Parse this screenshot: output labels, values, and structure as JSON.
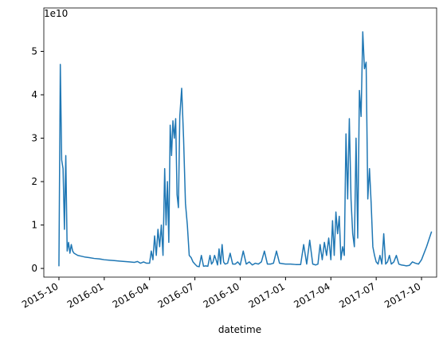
{
  "chart_data": {
    "type": "line",
    "offset_label": "1e10",
    "x_label": "datetime",
    "x": [
      "2015-10",
      "2015-10",
      "2015-10",
      "2015-10",
      "2015-10",
      "2015-10",
      "2015-10",
      "2015-10",
      "2015-10",
      "2015-10",
      "2015-10",
      "2015-11",
      "2015-11",
      "2015-11",
      "2015-11",
      "2015-12",
      "2015-12",
      "2015-12",
      "2016-01",
      "2016-01",
      "2016-01",
      "2016-02",
      "2016-02",
      "2016-02",
      "2016-03",
      "2016-03",
      "2016-03",
      "2016-03",
      "2016-03",
      "2016-04",
      "2016-04",
      "2016-04",
      "2016-04",
      "2016-04",
      "2016-04",
      "2016-04",
      "2016-04",
      "2016-04",
      "2016-05",
      "2016-05",
      "2016-05",
      "2016-05",
      "2016-05",
      "2016-05",
      "2016-05",
      "2016-05",
      "2016-05",
      "2016-05",
      "2016-05",
      "2016-06",
      "2016-06",
      "2016-06",
      "2016-06",
      "2016-06",
      "2016-06",
      "2016-06",
      "2016-06",
      "2016-07",
      "2016-07",
      "2016-07",
      "2016-07",
      "2016-07",
      "2016-07",
      "2016-07",
      "2016-08",
      "2016-08",
      "2016-08",
      "2016-08",
      "2016-08",
      "2016-08",
      "2016-08",
      "2016-08",
      "2016-08",
      "2016-08",
      "2016-09",
      "2016-09",
      "2016-09",
      "2016-09",
      "2016-09",
      "2016-09",
      "2016-10",
      "2016-10",
      "2016-10",
      "2016-10",
      "2016-10",
      "2016-11",
      "2016-11",
      "2016-11",
      "2016-11",
      "2016-11",
      "2016-12",
      "2016-12",
      "2016-12",
      "2016-12",
      "2016-12",
      "2017-01",
      "2017-01",
      "2017-01",
      "2017-02",
      "2017-02",
      "2017-02",
      "2017-02",
      "2017-02",
      "2017-03",
      "2017-03",
      "2017-03",
      "2017-03",
      "2017-03",
      "2017-03",
      "2017-03",
      "2017-04",
      "2017-04",
      "2017-04",
      "2017-04",
      "2017-04",
      "2017-04",
      "2017-04",
      "2017-04",
      "2017-04",
      "2017-05",
      "2017-05",
      "2017-05",
      "2017-05",
      "2017-05",
      "2017-05",
      "2017-05",
      "2017-05",
      "2017-05",
      "2017-06",
      "2017-06",
      "2017-06",
      "2017-06",
      "2017-06",
      "2017-06",
      "2017-06",
      "2017-06",
      "2017-06",
      "2017-07",
      "2017-07",
      "2017-07",
      "2017-07",
      "2017-07",
      "2017-07",
      "2017-07",
      "2017-07",
      "2017-08",
      "2017-08",
      "2017-08",
      "2017-08",
      "2017-08",
      "2017-08",
      "2017-09",
      "2017-09",
      "2017-09",
      "2017-09",
      "2017-09",
      "2017-10",
      "2017-10",
      "2017-10"
    ],
    "series": [
      {
        "color": "#1f77b4",
        "values": [
          0.05,
          4.7,
          2.5,
          2.3,
          0.9,
          2.6,
          0.4,
          0.6,
          0.35,
          0.55,
          0.4,
          0.35,
          0.3,
          0.28,
          0.26,
          0.25,
          0.23,
          0.22,
          0.2,
          0.19,
          0.18,
          0.17,
          0.16,
          0.15,
          0.14,
          0.16,
          0.12,
          0.15,
          0.12,
          0.12,
          0.4,
          0.2,
          0.75,
          0.3,
          0.9,
          0.5,
          1.0,
          0.3,
          2.3,
          1.0,
          2.0,
          0.6,
          3.3,
          2.6,
          3.4,
          3.0,
          3.45,
          1.7,
          1.4,
          3.5,
          4.15,
          3.0,
          1.5,
          1.0,
          0.3,
          0.25,
          0.15,
          0.1,
          0.05,
          0.04,
          0.3,
          0.05,
          0.06,
          0.05,
          0.3,
          0.1,
          0.15,
          0.3,
          0.2,
          0.08,
          0.45,
          0.1,
          0.55,
          0.15,
          0.1,
          0.12,
          0.35,
          0.1,
          0.1,
          0.15,
          0.08,
          0.4,
          0.1,
          0.15,
          0.08,
          0.12,
          0.1,
          0.15,
          0.4,
          0.1,
          0.1,
          0.12,
          0.4,
          0.12,
          0.11,
          0.1,
          0.1,
          0.09,
          0.09,
          0.55,
          0.1,
          0.65,
          0.1,
          0.08,
          0.1,
          0.55,
          0.2,
          0.6,
          0.3,
          0.7,
          0.2,
          1.1,
          0.3,
          1.3,
          0.8,
          1.2,
          0.2,
          0.5,
          0.3,
          3.1,
          1.6,
          3.45,
          1.6,
          0.8,
          0.5,
          3.0,
          0.7,
          4.1,
          3.5,
          5.45,
          4.6,
          4.75,
          1.6,
          2.3,
          1.5,
          0.5,
          0.3,
          0.15,
          0.1,
          0.3,
          0.1,
          0.8,
          0.1,
          0.15,
          0.3,
          0.1,
          0.15,
          0.3,
          0.1,
          0.08,
          0.07,
          0.06,
          0.07,
          0.15,
          0.12,
          0.1,
          0.2,
          0.5,
          0.85
        ]
      }
    ],
    "xlim": [
      "2015-09",
      "2017-11"
    ],
    "xticks": [
      "2015-10",
      "2016-01",
      "2016-04",
      "2016-07",
      "2016-10",
      "2017-01",
      "2017-04",
      "2017-07",
      "2017-10"
    ],
    "ylim": [
      -0.2,
      6
    ],
    "yticks": [
      0,
      1,
      2,
      3,
      4,
      5
    ]
  }
}
